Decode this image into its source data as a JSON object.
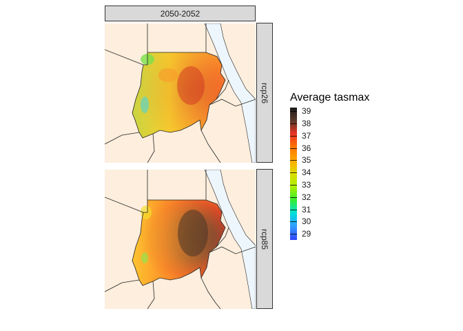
{
  "facet": {
    "column_label": "2050-2052",
    "row_labels": [
      "rcp26",
      "rcp85"
    ]
  },
  "legend": {
    "title": "Average tasmax",
    "ticks": [
      "39",
      "38",
      "37",
      "36",
      "35",
      "34",
      "33",
      "32",
      "31",
      "30",
      "29"
    ],
    "range": [
      28.5,
      39.3
    ],
    "colors": [
      "#1a1a1a",
      "#5a3a2a",
      "#ee3322",
      "#ff7700",
      "#ffaa00",
      "#dddd00",
      "#aaee00",
      "#33ee33",
      "#00dddd",
      "#3399ff",
      "#3344ff"
    ]
  },
  "map": {
    "region": "Sudan",
    "land_color": "#fdeedd",
    "water_color": "#eef6fd",
    "panels": [
      {
        "scenario": "rcp26",
        "dominant_temperature": 37.2,
        "west_temperature": 33.0
      },
      {
        "scenario": "rcp85",
        "dominant_temperature": 38.4,
        "west_temperature": 35.0
      }
    ]
  }
}
